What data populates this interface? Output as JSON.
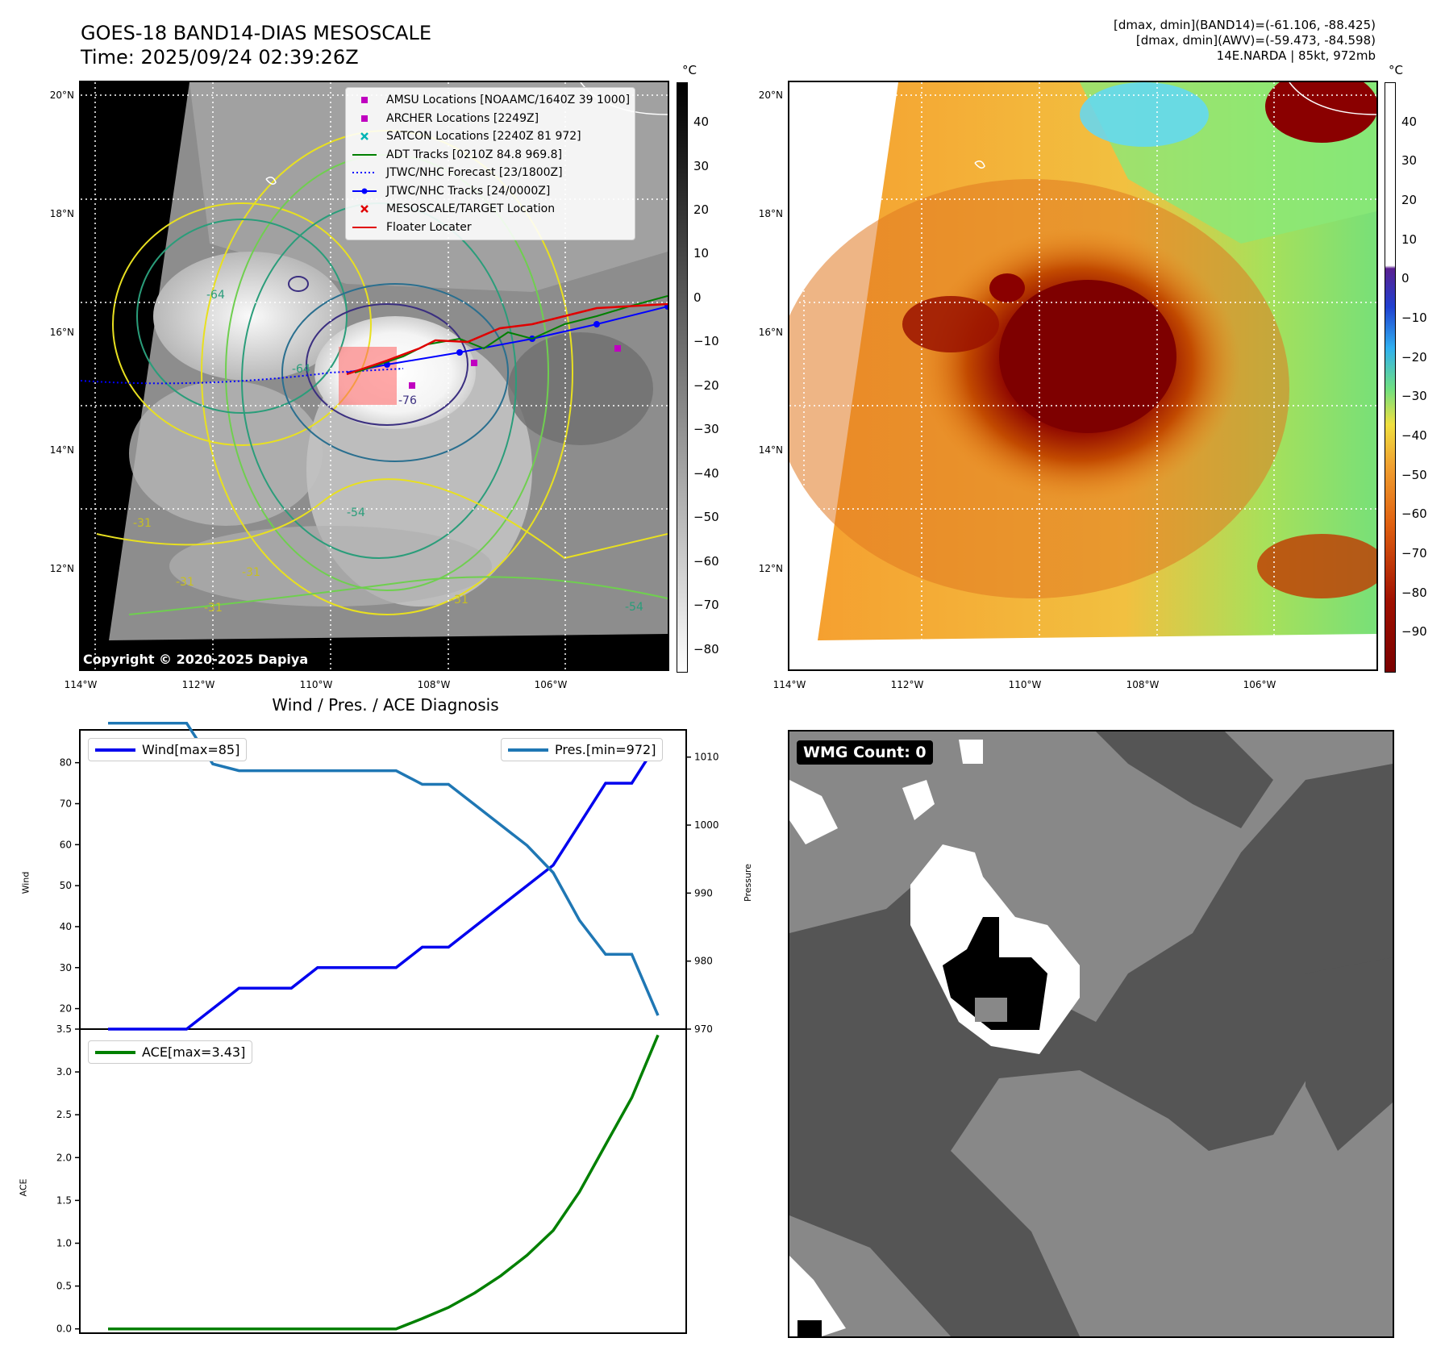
{
  "header": {
    "title_line1": "GOES-18 BAND14-DIAS MESOSCALE",
    "title_line2": "Time: 2025/09/24 02:39:26Z",
    "info_line1": "[dmax, dmin](BAND14)=(-61.106, -88.425)",
    "info_line2": "[dmax, dmin](AWV)=(-59.473, -84.598)",
    "info_line3": "14E.NARDA | 85kt, 972mb"
  },
  "ir_panel": {
    "lat_labels": [
      "20°N",
      "18°N",
      "16°N",
      "14°N",
      "12°N"
    ],
    "lon_labels": [
      "114°W",
      "112°W",
      "110°W",
      "108°W",
      "106°W"
    ],
    "copyright": "Copyright © 2020-2025 Dapiya",
    "contour_labels": [
      "-64",
      "-54",
      "-31",
      "-31",
      "-31",
      "-31",
      "-31",
      "-54",
      "-76",
      "-64"
    ],
    "legend": [
      {
        "label": "AMSU Locations [NOAAMC/1640Z 39 1000]",
        "marker": "square",
        "color": "#c000c0"
      },
      {
        "label": "ARCHER Locations [2249Z]",
        "marker": "square",
        "color": "#c000c0"
      },
      {
        "label": "SATCON Locations [2240Z 81 972]",
        "marker": "x",
        "color": "#00b4b4"
      },
      {
        "label": "ADT Tracks [0210Z 84.8 969.8]",
        "marker": "line",
        "color": "#008000"
      },
      {
        "label": "JTWC/NHC Forecast [23/1800Z]",
        "marker": "dotted",
        "color": "#0000ff"
      },
      {
        "label": "JTWC/NHC Tracks [24/0000Z]",
        "marker": "line-dot",
        "color": "#0000ff"
      },
      {
        "label": "MESOSCALE/TARGET Location",
        "marker": "x",
        "color": "#e00000"
      },
      {
        "label": "Floater Locater",
        "marker": "line",
        "color": "#e00000"
      }
    ],
    "colorbar": {
      "unit": "°C",
      "ticks": [
        "40",
        "30",
        "20",
        "10",
        "0",
        "−10",
        "−20",
        "−30",
        "−40",
        "−50",
        "−60",
        "−70",
        "−80"
      ]
    }
  },
  "awv_panel": {
    "lat_labels": [
      "20°N",
      "18°N",
      "16°N",
      "14°N",
      "12°N"
    ],
    "lon_labels": [
      "114°W",
      "112°W",
      "110°W",
      "108°W",
      "106°W"
    ],
    "colorbar": {
      "unit": "°C",
      "ticks": [
        "40",
        "30",
        "20",
        "10",
        "0",
        "−10",
        "−20",
        "−30",
        "−40",
        "−50",
        "−60",
        "−70",
        "−80",
        "−90"
      ]
    }
  },
  "wmg_panel": {
    "label": "WMG Count: 0"
  },
  "chart_data": [
    {
      "type": "line",
      "title": "Wind / Pres. / ACE Diagnosis",
      "ylabel": "Wind",
      "ylabel_right": "Pressure",
      "ylim": [
        15,
        88
      ],
      "ylim_right": [
        970,
        1014
      ],
      "yticks": [
        20,
        30,
        40,
        50,
        60,
        70,
        80
      ],
      "yticks_right": [
        970,
        980,
        990,
        1000,
        1010
      ],
      "series": [
        {
          "name": "Wind[max=85]",
          "color": "#0000ee",
          "axis": "left",
          "values": [
            15,
            15,
            15,
            15,
            20,
            25,
            25,
            25,
            30,
            30,
            30,
            30,
            35,
            35,
            40,
            45,
            50,
            55,
            65,
            75,
            75,
            85
          ]
        },
        {
          "name": "Pres.[min=972]",
          "color": "#1f77b4",
          "axis": "right",
          "values": [
            1015,
            1015,
            1015,
            1015,
            1009,
            1008,
            1008,
            1008,
            1008,
            1008,
            1008,
            1008,
            1006,
            1006,
            1003,
            1000,
            997,
            993,
            986,
            981,
            981,
            972
          ]
        }
      ]
    },
    {
      "type": "line",
      "ylabel": "ACE",
      "ylim": [
        -0.05,
        3.5
      ],
      "yticks": [
        0.0,
        0.5,
        1.0,
        1.5,
        2.0,
        2.5,
        3.0,
        3.5
      ],
      "series": [
        {
          "name": "ACE[max=3.43]",
          "color": "#008000",
          "values": [
            0,
            0,
            0,
            0,
            0,
            0,
            0,
            0,
            0,
            0,
            0,
            0,
            0.12,
            0.25,
            0.42,
            0.62,
            0.86,
            1.15,
            1.6,
            2.15,
            2.7,
            3.43
          ]
        }
      ]
    }
  ]
}
